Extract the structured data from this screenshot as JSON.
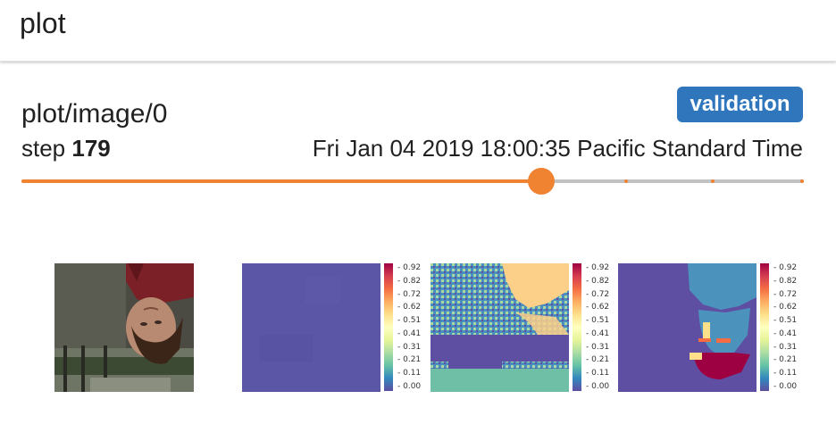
{
  "header": {
    "title": "plot"
  },
  "card": {
    "tag": "plot/image/0",
    "run_badge": "validation",
    "step_label": "step",
    "step_value": "179",
    "timestamp": "Fri Jan 04 2019 18:00:35 Pacific Standard Time"
  },
  "slider": {
    "value_fraction": 0.664,
    "tick_fractions": [
      0.775,
      0.886,
      1.0
    ]
  },
  "colors": {
    "accent": "#f08332",
    "badge": "#2f76bd",
    "rail": "#c2c2c2"
  },
  "image_panels": [
    {
      "name": "input-photo"
    },
    {
      "name": "prediction-heatmap-1"
    },
    {
      "name": "prediction-heatmap-2"
    },
    {
      "name": "prediction-heatmap-3"
    }
  ],
  "colorbar_ticks": [
    "0.92",
    "0.82",
    "0.72",
    "0.62",
    "0.51",
    "0.41",
    "0.31",
    "0.21",
    "0.11",
    "0.00"
  ]
}
